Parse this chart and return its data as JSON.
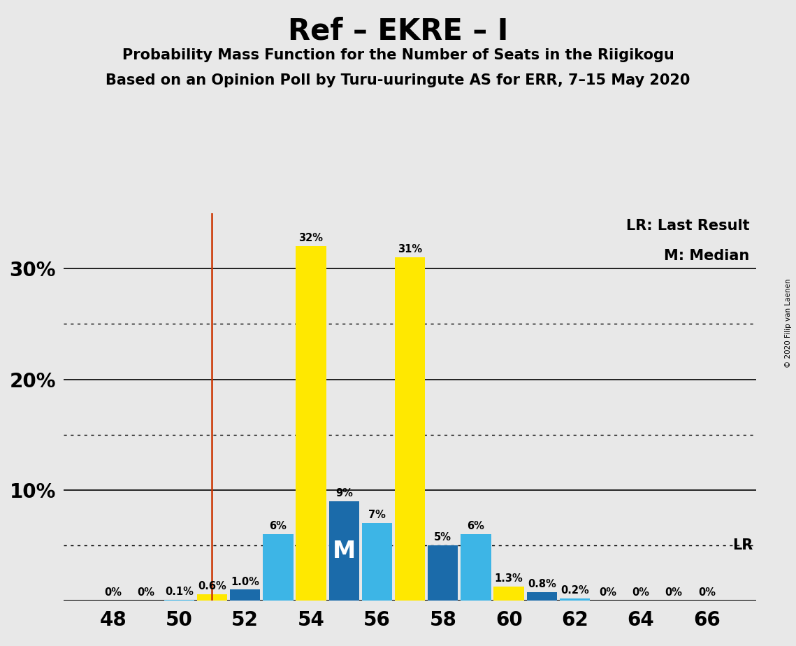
{
  "title": "Ref – EKRE – I",
  "subtitle1": "Probability Mass Function for the Number of Seats in the Riigikogu",
  "subtitle2": "Based on an Opinion Poll by Turu-uuringute AS for ERR, 7–15 May 2020",
  "copyright": "© 2020 Filip van Laenen",
  "background_color": "#e8e8e8",
  "bar_color_yellow": "#FFE800",
  "bar_color_blue_dark": "#1B6BAA",
  "bar_color_blue_light": "#3DB5E6",
  "lr_line_color": "#CC3300",
  "lr_x": 51.0,
  "median_x": 55,
  "seats": [
    48,
    49,
    50,
    51,
    52,
    53,
    54,
    55,
    56,
    57,
    58,
    59,
    60,
    61,
    62,
    63,
    64,
    65,
    66
  ],
  "values": [
    0.0,
    0.0,
    0.1,
    0.6,
    1.0,
    6.0,
    32.0,
    9.0,
    7.0,
    31.0,
    5.0,
    6.0,
    1.3,
    0.8,
    0.2,
    0.0,
    0.0,
    0.0,
    0.0
  ],
  "labels": [
    "0%",
    "0%",
    "0.1%",
    "0.6%",
    "1.0%",
    "6%",
    "32%",
    "9%",
    "7%",
    "31%",
    "5%",
    "6%",
    "1.3%",
    "0.8%",
    "0.2%",
    "0%",
    "0%",
    "0%",
    "0%"
  ],
  "bar_types": [
    "blue_light",
    "blue_light",
    "blue_light",
    "yellow",
    "blue_dark",
    "blue_light",
    "yellow",
    "blue_dark",
    "blue_light",
    "yellow",
    "blue_dark",
    "blue_light",
    "yellow",
    "blue_dark",
    "blue_light",
    "blue_light",
    "blue_light",
    "blue_light",
    "blue_light"
  ],
  "xticks": [
    48,
    50,
    52,
    54,
    56,
    58,
    60,
    62,
    64,
    66
  ],
  "xlim": [
    46.5,
    67.5
  ],
  "ylim": [
    0,
    35
  ],
  "solid_gridlines": [
    10,
    20,
    30
  ],
  "dotted_gridlines": [
    5,
    15,
    25
  ],
  "ytick_positions": [
    10,
    20,
    30
  ],
  "ytick_labels": [
    "10%",
    "20%",
    "30%"
  ],
  "legend_lr": "LR: Last Result",
  "legend_m": "M: Median",
  "lr_label": "LR"
}
